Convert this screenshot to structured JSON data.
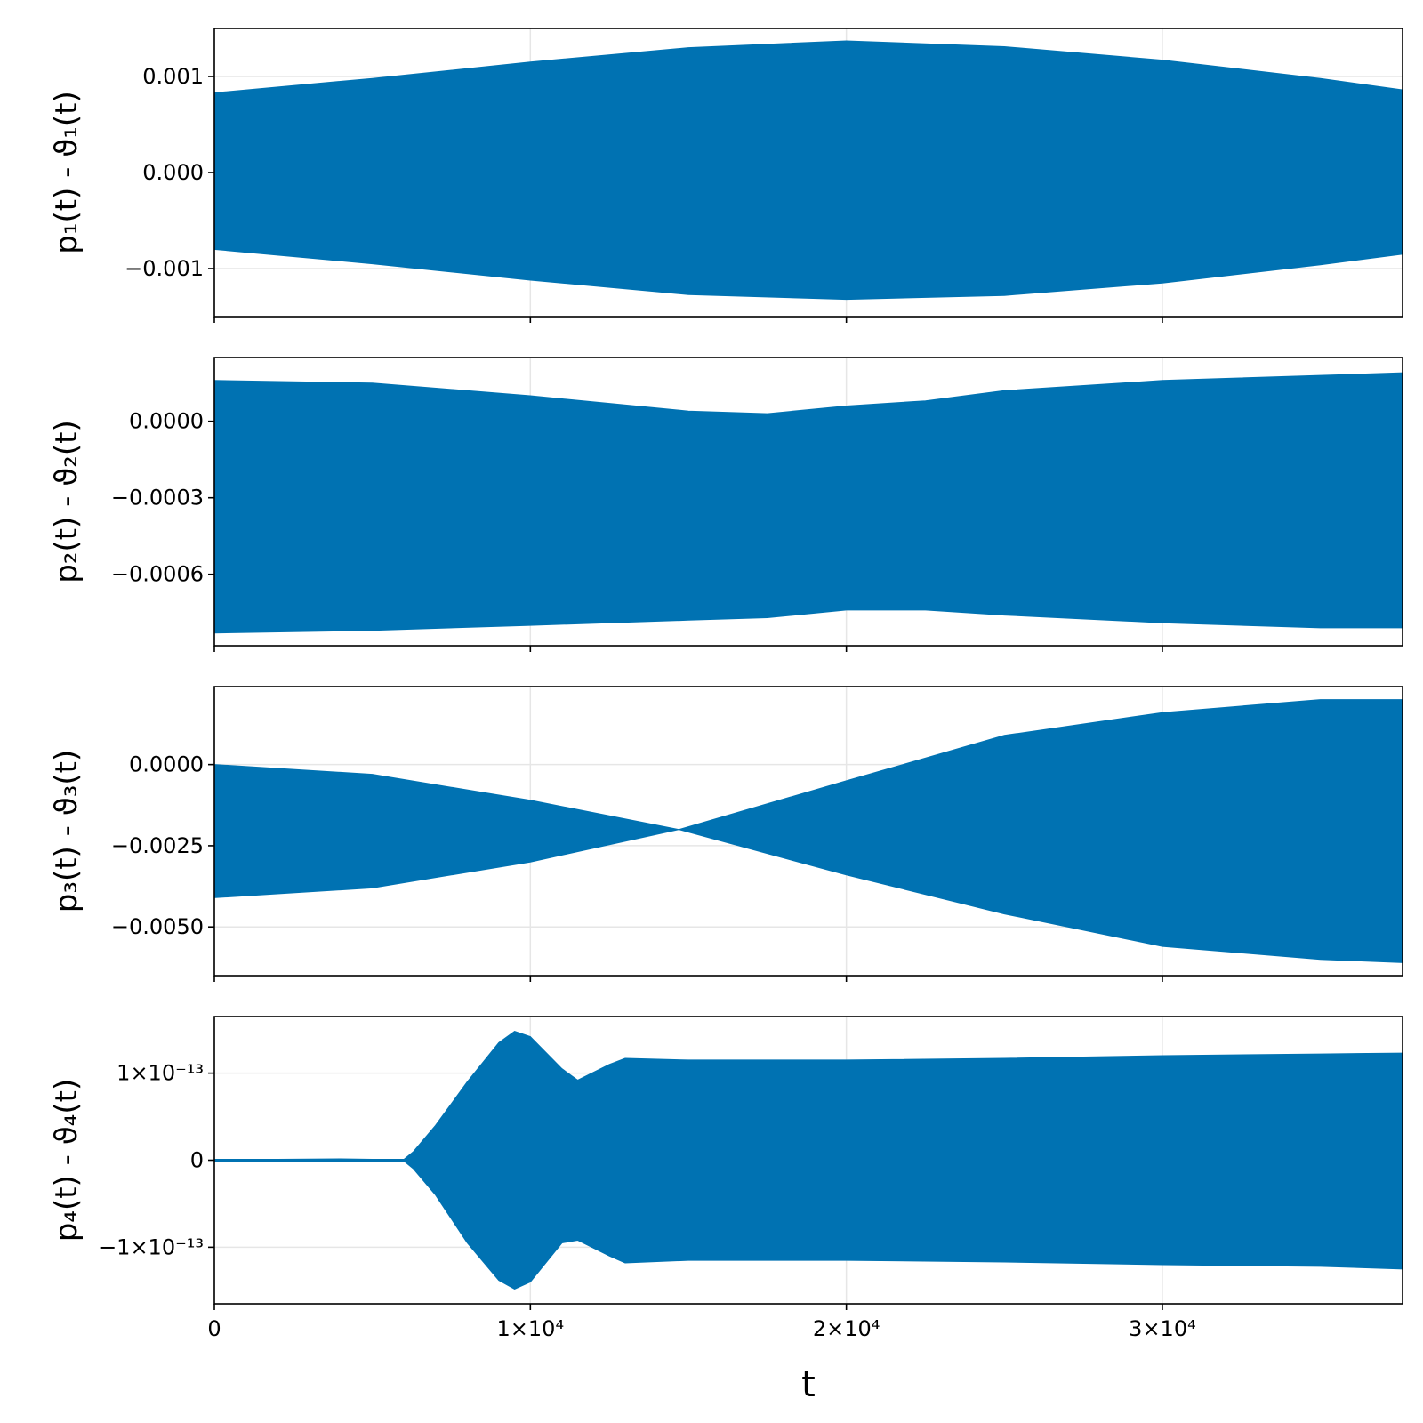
{
  "colors": {
    "series": "#0072b2",
    "grid": "#e6e6e6",
    "frame": "#000000"
  },
  "chart_data": [
    {
      "type": "area",
      "ylabel": "p₁(t) - ϑ₁(t)",
      "xlim": [
        0,
        37600
      ],
      "ylim": [
        -0.0015,
        0.0015
      ],
      "yticks": [
        0.001,
        0.0,
        -0.001
      ],
      "yticklabels": [
        "0.001",
        "0.000",
        "−0.001"
      ],
      "xticks": [
        0,
        10000,
        20000,
        30000
      ],
      "grid": true,
      "show_xticklabels": false,
      "envelope": {
        "x": [
          0,
          5000,
          10000,
          15000,
          20000,
          25000,
          30000,
          35000,
          37600
        ],
        "upper": [
          0.00083,
          0.00098,
          0.00115,
          0.0013,
          0.00137,
          0.00131,
          0.00117,
          0.00098,
          0.00086
        ],
        "lower": [
          -0.0008,
          -0.00095,
          -0.00112,
          -0.00127,
          -0.00132,
          -0.00128,
          -0.00115,
          -0.00096,
          -0.00085
        ]
      }
    },
    {
      "type": "area",
      "ylabel": "p₂(t) - ϑ₂(t)",
      "xlim": [
        0,
        37600
      ],
      "ylim": [
        -0.00088,
        0.00025
      ],
      "yticks": [
        0.0,
        -0.0003,
        -0.0006
      ],
      "yticklabels": [
        "0.0000",
        "−0.0003",
        "−0.0006"
      ],
      "xticks": [
        0,
        10000,
        20000,
        30000
      ],
      "grid": true,
      "show_xticklabels": false,
      "envelope": {
        "x": [
          0,
          5000,
          10000,
          15000,
          17500,
          20000,
          22500,
          25000,
          30000,
          35000,
          37600
        ],
        "upper": [
          0.00016,
          0.00015,
          0.0001,
          4e-05,
          3e-05,
          6e-05,
          8e-05,
          0.00012,
          0.00016,
          0.00018,
          0.00019
        ],
        "lower": [
          -0.00083,
          -0.00082,
          -0.0008,
          -0.00078,
          -0.00077,
          -0.00074,
          -0.00074,
          -0.00076,
          -0.00079,
          -0.00081,
          -0.00081
        ]
      }
    },
    {
      "type": "area",
      "ylabel": "p₃(t) - ϑ₃(t)",
      "xlim": [
        0,
        37600
      ],
      "ylim": [
        -0.0065,
        0.0024
      ],
      "yticks": [
        0.0,
        -0.0025,
        -0.005
      ],
      "yticklabels": [
        "0.0000",
        "−0.0025",
        "−0.0050"
      ],
      "xticks": [
        0,
        10000,
        20000,
        30000
      ],
      "grid": true,
      "show_xticklabels": false,
      "envelope": {
        "x": [
          0,
          5000,
          10000,
          14700,
          20000,
          25000,
          30000,
          35000,
          37600
        ],
        "upper": [
          0.0,
          -0.0003,
          -0.0011,
          -0.002,
          -0.0005,
          0.0009,
          0.0016,
          0.002,
          0.002
        ],
        "lower": [
          -0.0041,
          -0.0038,
          -0.003,
          -0.002,
          -0.0034,
          -0.0046,
          -0.0056,
          -0.006,
          -0.0061
        ]
      }
    },
    {
      "type": "area",
      "ylabel": "p₄(t) - ϑ₄(t)",
      "xlabel": "t",
      "xlim": [
        0,
        37600
      ],
      "ylim": [
        -1.65e-13,
        1.65e-13
      ],
      "yticks": [
        1e-13,
        0,
        -1e-13
      ],
      "yticklabels": [
        "1×10⁻¹³",
        "0",
        "−1×10⁻¹³"
      ],
      "xticks": [
        0,
        10000,
        20000,
        30000
      ],
      "xticklabels": [
        "0",
        "1×10⁴",
        "2×10⁴",
        "3×10⁴"
      ],
      "grid": true,
      "show_xticklabels": true,
      "envelope": {
        "x": [
          0,
          2000,
          4000,
          5000,
          6000,
          6300,
          7000,
          8000,
          9000,
          9500,
          10000,
          11000,
          11500,
          12500,
          13000,
          15000,
          20000,
          25000,
          30000,
          35000,
          37600
        ],
        "upper": [
          1e-15,
          1e-15,
          1.5e-15,
          1e-15,
          1e-15,
          1e-14,
          4e-14,
          9e-14,
          1.35e-13,
          1.48e-13,
          1.42e-13,
          1.05e-13,
          9.2e-14,
          1.1e-13,
          1.17e-13,
          1.15e-13,
          1.15e-13,
          1.17e-13,
          1.2e-13,
          1.22e-13,
          1.23e-13
        ],
        "lower": [
          -1e-15,
          -1e-15,
          -1.5e-15,
          -1e-15,
          -1e-15,
          -1e-14,
          -4e-14,
          -9.5e-14,
          -1.38e-13,
          -1.48e-13,
          -1.4e-13,
          -9.5e-14,
          -9.2e-14,
          -1.1e-13,
          -1.18e-13,
          -1.15e-13,
          -1.15e-13,
          -1.17e-13,
          -1.2e-13,
          -1.22e-13,
          -1.25e-13
        ]
      }
    }
  ]
}
